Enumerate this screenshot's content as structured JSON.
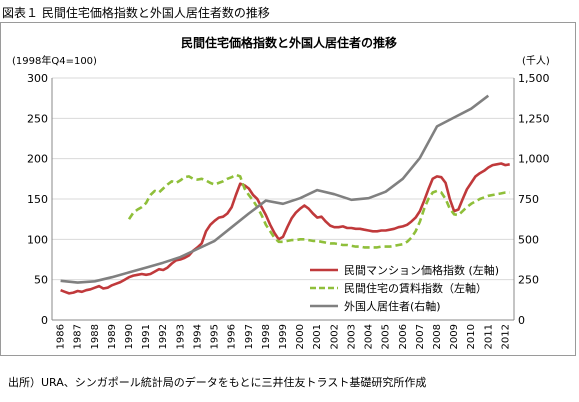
{
  "figure_title": "図表１ 民間住宅価格指数と外国人居住者数の推移",
  "source_note": "出所）URA、シンガポール統計局のデータをもとに三井住友トラスト基礎研究所作成",
  "chart_data": {
    "type": "line",
    "title": "民間住宅価格指数と外国人居住者の推移",
    "left_axis_caption": "(1998年Q4=100)",
    "right_axis_caption": "(千人)",
    "left_range": [
      0,
      300
    ],
    "right_range": [
      0,
      1500
    ],
    "left_ticks": [
      "0",
      "50",
      "100",
      "150",
      "200",
      "250",
      "300"
    ],
    "right_ticks": [
      "0",
      "250",
      "500",
      "750",
      "1,000",
      "1,250",
      "1,500"
    ],
    "x_range": [
      1986,
      2013
    ],
    "x_ticks": [
      "1986",
      "1987",
      "1988",
      "1989",
      "1990",
      "1991",
      "1992",
      "1993",
      "1994",
      "1995",
      "1996",
      "1997",
      "1998",
      "1999",
      "2000",
      "2001",
      "2002",
      "2003",
      "2004",
      "2005",
      "2006",
      "2007",
      "2008",
      "2009",
      "2010",
      "2011",
      "2012"
    ],
    "grid": true,
    "legend_position": "lower-right inside plot",
    "series": [
      {
        "name": "民間マンション価格指数 (左軸)",
        "axis": "left",
        "color": "#c0393b",
        "style": "solid",
        "points": [
          [
            1986.0,
            37
          ],
          [
            1986.25,
            35
          ],
          [
            1986.5,
            33
          ],
          [
            1986.75,
            34
          ],
          [
            1987.0,
            36
          ],
          [
            1987.25,
            35
          ],
          [
            1987.5,
            37
          ],
          [
            1987.75,
            38
          ],
          [
            1988.0,
            40
          ],
          [
            1988.25,
            42
          ],
          [
            1988.5,
            39
          ],
          [
            1988.75,
            40
          ],
          [
            1989.0,
            43
          ],
          [
            1989.25,
            45
          ],
          [
            1989.5,
            47
          ],
          [
            1989.75,
            50
          ],
          [
            1990.0,
            53
          ],
          [
            1990.25,
            55
          ],
          [
            1990.5,
            56
          ],
          [
            1990.75,
            57
          ],
          [
            1991.0,
            56
          ],
          [
            1991.25,
            57
          ],
          [
            1991.5,
            60
          ],
          [
            1991.75,
            63
          ],
          [
            1992.0,
            62
          ],
          [
            1992.25,
            65
          ],
          [
            1992.5,
            70
          ],
          [
            1992.75,
            74
          ],
          [
            1993.0,
            75
          ],
          [
            1993.25,
            77
          ],
          [
            1993.5,
            80
          ],
          [
            1993.75,
            86
          ],
          [
            1994.0,
            90
          ],
          [
            1994.25,
            95
          ],
          [
            1994.5,
            110
          ],
          [
            1994.75,
            118
          ],
          [
            1995.0,
            123
          ],
          [
            1995.25,
            127
          ],
          [
            1995.5,
            128
          ],
          [
            1995.75,
            132
          ],
          [
            1996.0,
            140
          ],
          [
            1996.25,
            155
          ],
          [
            1996.5,
            169
          ],
          [
            1996.75,
            167
          ],
          [
            1997.0,
            163
          ],
          [
            1997.25,
            155
          ],
          [
            1997.5,
            150
          ],
          [
            1997.75,
            140
          ],
          [
            1998.0,
            130
          ],
          [
            1998.25,
            118
          ],
          [
            1998.5,
            108
          ],
          [
            1998.75,
            100
          ],
          [
            1999.0,
            103
          ],
          [
            1999.25,
            115
          ],
          [
            1999.5,
            126
          ],
          [
            1999.75,
            133
          ],
          [
            2000.0,
            138
          ],
          [
            2000.25,
            142
          ],
          [
            2000.5,
            138
          ],
          [
            2000.75,
            132
          ],
          [
            2001.0,
            127
          ],
          [
            2001.25,
            128
          ],
          [
            2001.5,
            122
          ],
          [
            2001.75,
            117
          ],
          [
            2002.0,
            115
          ],
          [
            2002.25,
            115
          ],
          [
            2002.5,
            116
          ],
          [
            2002.75,
            114
          ],
          [
            2003.0,
            114
          ],
          [
            2003.25,
            113
          ],
          [
            2003.5,
            113
          ],
          [
            2003.75,
            112
          ],
          [
            2004.0,
            111
          ],
          [
            2004.25,
            110
          ],
          [
            2004.5,
            110
          ],
          [
            2004.75,
            111
          ],
          [
            2005.0,
            111
          ],
          [
            2005.25,
            112
          ],
          [
            2005.5,
            113
          ],
          [
            2005.75,
            115
          ],
          [
            2006.0,
            116
          ],
          [
            2006.25,
            118
          ],
          [
            2006.5,
            122
          ],
          [
            2006.75,
            127
          ],
          [
            2007.0,
            135
          ],
          [
            2007.25,
            148
          ],
          [
            2007.5,
            162
          ],
          [
            2007.75,
            175
          ],
          [
            2008.0,
            178
          ],
          [
            2008.25,
            177
          ],
          [
            2008.5,
            170
          ],
          [
            2008.75,
            150
          ],
          [
            2009.0,
            135
          ],
          [
            2009.25,
            137
          ],
          [
            2009.5,
            150
          ],
          [
            2009.75,
            162
          ],
          [
            2010.0,
            170
          ],
          [
            2010.25,
            178
          ],
          [
            2010.5,
            182
          ],
          [
            2010.75,
            185
          ],
          [
            2011.0,
            189
          ],
          [
            2011.25,
            192
          ],
          [
            2011.5,
            193
          ],
          [
            2011.75,
            194
          ],
          [
            2012.0,
            192
          ],
          [
            2012.25,
            193
          ]
        ]
      },
      {
        "name": "民間住宅の賃料指数（左軸）",
        "axis": "left",
        "color": "#8fbf3a",
        "style": "dashed",
        "points": [
          [
            1990.0,
            125
          ],
          [
            1990.25,
            133
          ],
          [
            1990.5,
            137
          ],
          [
            1990.75,
            140
          ],
          [
            1991.0,
            145
          ],
          [
            1991.25,
            155
          ],
          [
            1991.5,
            160
          ],
          [
            1991.75,
            158
          ],
          [
            1992.0,
            163
          ],
          [
            1992.25,
            168
          ],
          [
            1992.5,
            172
          ],
          [
            1992.75,
            170
          ],
          [
            1993.0,
            173
          ],
          [
            1993.25,
            177
          ],
          [
            1993.5,
            178
          ],
          [
            1993.75,
            175
          ],
          [
            1994.0,
            174
          ],
          [
            1994.25,
            175
          ],
          [
            1994.5,
            173
          ],
          [
            1994.75,
            170
          ],
          [
            1995.0,
            168
          ],
          [
            1995.25,
            170
          ],
          [
            1995.5,
            172
          ],
          [
            1995.75,
            175
          ],
          [
            1996.0,
            177
          ],
          [
            1996.25,
            180
          ],
          [
            1996.5,
            178
          ],
          [
            1996.75,
            163
          ],
          [
            1997.0,
            155
          ],
          [
            1997.25,
            148
          ],
          [
            1997.5,
            140
          ],
          [
            1997.75,
            130
          ],
          [
            1998.0,
            118
          ],
          [
            1998.25,
            110
          ],
          [
            1998.5,
            102
          ],
          [
            1998.75,
            97
          ],
          [
            1999.0,
            97
          ],
          [
            1999.25,
            98
          ],
          [
            1999.5,
            99
          ],
          [
            1999.75,
            99
          ],
          [
            2000.0,
            100
          ],
          [
            2000.25,
            100
          ],
          [
            2000.5,
            99
          ],
          [
            2000.75,
            98
          ],
          [
            2001.0,
            98
          ],
          [
            2001.25,
            97
          ],
          [
            2001.5,
            96
          ],
          [
            2001.75,
            95
          ],
          [
            2002.0,
            95
          ],
          [
            2002.25,
            94
          ],
          [
            2002.5,
            93
          ],
          [
            2002.75,
            93
          ],
          [
            2003.0,
            92
          ],
          [
            2003.25,
            91
          ],
          [
            2003.5,
            91
          ],
          [
            2003.75,
            90
          ],
          [
            2004.0,
            90
          ],
          [
            2004.25,
            90
          ],
          [
            2004.5,
            90
          ],
          [
            2004.75,
            91
          ],
          [
            2005.0,
            91
          ],
          [
            2005.25,
            91
          ],
          [
            2005.5,
            92
          ],
          [
            2005.75,
            93
          ],
          [
            2006.0,
            94
          ],
          [
            2006.25,
            97
          ],
          [
            2006.5,
            102
          ],
          [
            2006.75,
            110
          ],
          [
            2007.0,
            122
          ],
          [
            2007.25,
            138
          ],
          [
            2007.5,
            150
          ],
          [
            2007.75,
            158
          ],
          [
            2008.0,
            160
          ],
          [
            2008.25,
            158
          ],
          [
            2008.5,
            150
          ],
          [
            2008.75,
            138
          ],
          [
            2009.0,
            131
          ],
          [
            2009.25,
            130
          ],
          [
            2009.5,
            135
          ],
          [
            2009.75,
            140
          ],
          [
            2010.0,
            144
          ],
          [
            2010.25,
            147
          ],
          [
            2010.5,
            150
          ],
          [
            2010.75,
            152
          ],
          [
            2011.0,
            154
          ],
          [
            2011.25,
            155
          ],
          [
            2011.5,
            156
          ],
          [
            2011.75,
            157
          ],
          [
            2012.0,
            158
          ],
          [
            2012.25,
            158
          ]
        ]
      },
      {
        "name": "外国人居住者(右軸)",
        "axis": "right",
        "color": "#808080",
        "style": "solid",
        "points": [
          [
            1986,
            243
          ],
          [
            1987,
            232
          ],
          [
            1988,
            240
          ],
          [
            1989,
            265
          ],
          [
            1990,
            295
          ],
          [
            1991,
            325
          ],
          [
            1992,
            355
          ],
          [
            1993,
            390
          ],
          [
            1994,
            440
          ],
          [
            1995,
            490
          ],
          [
            1996,
            575
          ],
          [
            1997,
            660
          ],
          [
            1998,
            740
          ],
          [
            1999,
            720
          ],
          [
            2000,
            755
          ],
          [
            2001,
            805
          ],
          [
            2002,
            780
          ],
          [
            2003,
            745
          ],
          [
            2004,
            755
          ],
          [
            2005,
            795
          ],
          [
            2006,
            875
          ],
          [
            2007,
            1005
          ],
          [
            2008,
            1200
          ],
          [
            2009,
            1255
          ],
          [
            2010,
            1310
          ],
          [
            2011,
            1390
          ]
        ]
      }
    ]
  }
}
